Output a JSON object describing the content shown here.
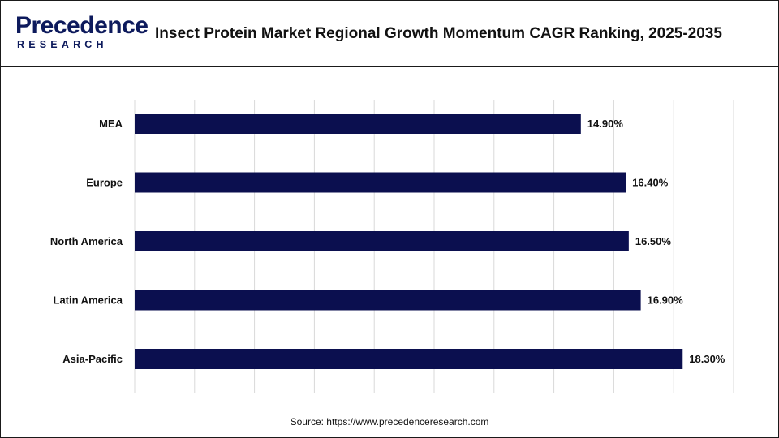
{
  "header": {
    "logo_top": "Precedence",
    "logo_bottom": "RESEARCH",
    "title": "Insect Protein Market Regional Growth Momentum CAGR Ranking, 2025-2035"
  },
  "source": "Source: https://www.precedenceresearch.com",
  "colors": {
    "bar": "#0b0f4f",
    "grid": "#d9d9d9",
    "text": "#111111"
  },
  "chart_data": {
    "type": "bar",
    "orientation": "horizontal",
    "title": "Insect Protein Market Regional Growth Momentum CAGR Ranking, 2025-2035",
    "xlabel": "",
    "ylabel": "",
    "categories": [
      "MEA",
      "Europe",
      "North America",
      "Latin America",
      "Asia-Pacific"
    ],
    "values": [
      14.9,
      16.4,
      16.5,
      16.9,
      18.3
    ],
    "value_labels": [
      "14.90%",
      "16.40%",
      "16.50%",
      "16.90%",
      "18.30%"
    ],
    "xlim": [
      0,
      20
    ],
    "grid": true,
    "legend": "none"
  }
}
